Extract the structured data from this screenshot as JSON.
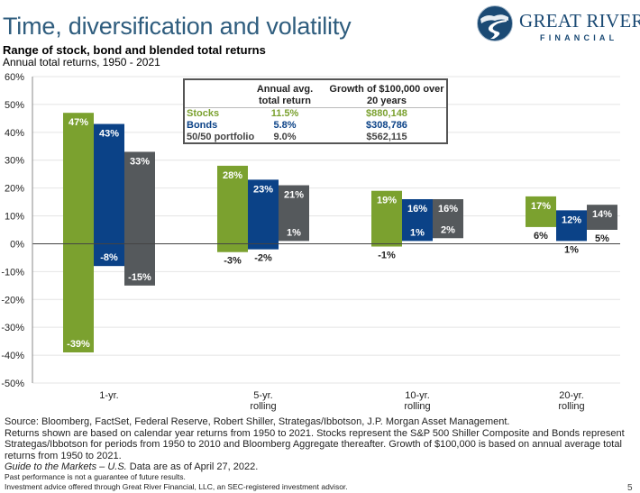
{
  "header": {
    "title": "Time, diversification and volatility",
    "subtitle": "Range of stock, bond and blended total returns",
    "subtitle2": "Annual total returns, 1950 - 2021"
  },
  "logo": {
    "name": "GREAT RIVER",
    "sub": "FINANCIAL",
    "icon": "river-globe-icon",
    "color": "#1b4a74"
  },
  "colors": {
    "stocks": "#7ba12f",
    "bonds": "#0b4287",
    "portfolio": "#55595c",
    "title": "#2f5d7e"
  },
  "summary_table": {
    "headers": [
      "",
      "Annual avg. total return",
      "Growth of $100,000 over 20 years"
    ],
    "header_lines": [
      [
        "",
        "Annual avg.",
        "Growth of $100,000 over"
      ],
      [
        "",
        "total return",
        "20 years"
      ]
    ],
    "rows": [
      {
        "name": "Stocks",
        "avg": "11.5%",
        "growth": "$880,148",
        "color": "#7ba12f"
      },
      {
        "name": "Bonds",
        "avg": "5.8%",
        "growth": "$308,786",
        "color": "#0b4287"
      },
      {
        "name": "50/50 portfolio",
        "avg": "9.0%",
        "growth": "$562,115",
        "color": "#444444"
      }
    ]
  },
  "chart_data": {
    "type": "bar",
    "subtype": "floating-range",
    "title": "Range of stock, bond and blended total returns",
    "xlabel": "",
    "ylabel": "",
    "ylim": [
      -50,
      60
    ],
    "yticks": [
      -50,
      -40,
      -30,
      -20,
      -10,
      0,
      10,
      20,
      30,
      40,
      50,
      60
    ],
    "ytick_labels": [
      "-50%",
      "-40%",
      "-30%",
      "-20%",
      "-10%",
      "0%",
      "10%",
      "20%",
      "30%",
      "40%",
      "50%",
      "60%"
    ],
    "grid": true,
    "categories": [
      [
        "1-yr."
      ],
      [
        "5-yr.",
        "rolling"
      ],
      [
        "10-yr.",
        "rolling"
      ],
      [
        "20-yr.",
        "rolling"
      ]
    ],
    "series": [
      {
        "name": "Stocks",
        "color": "#7ba12f",
        "max": [
          47,
          28,
          19,
          17
        ],
        "min": [
          -39,
          -3,
          -1,
          6
        ],
        "max_labels": [
          "47%",
          "28%",
          "19%",
          "17%"
        ],
        "min_labels": [
          "-39%",
          "-3%",
          "-1%",
          "6%"
        ]
      },
      {
        "name": "Bonds",
        "color": "#0b4287",
        "max": [
          43,
          23,
          16,
          12
        ],
        "min": [
          -8,
          -2,
          1,
          1
        ],
        "max_labels": [
          "43%",
          "23%",
          "16%",
          "12%"
        ],
        "min_labels": [
          "-8%",
          "-2%",
          "1%",
          "1%"
        ]
      },
      {
        "name": "50/50 portfolio",
        "color": "#55595c",
        "max": [
          33,
          21,
          16,
          14
        ],
        "min": [
          -15,
          1,
          2,
          5
        ],
        "max_labels": [
          "33%",
          "21%",
          "16%",
          "14%"
        ],
        "min_labels": [
          "-15%",
          "1%",
          "2%",
          "5%"
        ]
      }
    ]
  },
  "footer": {
    "source": "Source: Bloomberg, FactSet, Federal Reserve, Robert Shiller, Strategas/Ibbotson, J.P. Morgan Asset Management.",
    "note": "Returns shown are based on calendar year returns from 1950 to 2021. Stocks represent the S&P 500 Shiller Composite and Bonds represent Strategas/Ibbotson for periods from 1950 to 2010 and Bloomberg Aggregate thereafter. Growth of $100,000 is based on annual average total returns from 1950 to 2021.",
    "guide_italic": "Guide to the Markets – U.S.",
    "guide_rest": " Data are as of April 27, 2022.",
    "disclaimer1": "Past performance is not a guarantee of future results.",
    "disclaimer2": "Investment advice offered through Great River Financial, LLC, an SEC-registered investment advisor.",
    "page_number": "5"
  }
}
